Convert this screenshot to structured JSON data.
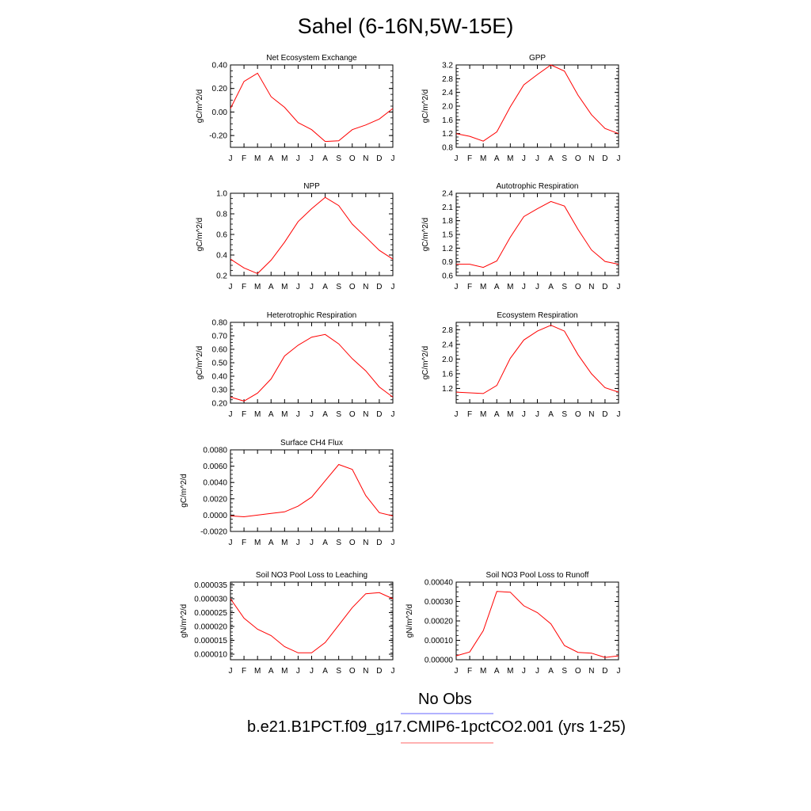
{
  "title": "Sahel (6-16N,5W-15E)",
  "legend": {
    "items": [
      {
        "label": "No Obs",
        "color": "#6666ff"
      },
      {
        "label": "b.e21.B1PCT.f09_g17.CMIP6-1pctCO2.001 (yrs 1-25)",
        "color": "#ff6666"
      }
    ]
  },
  "colors": {
    "series": "#ff0000"
  },
  "chart_data": [
    {
      "type": "line",
      "title": "Net Ecosystem Exchange",
      "ylabel": "gC/m^2/d",
      "categories": [
        "J",
        "F",
        "M",
        "A",
        "M",
        "J",
        "J",
        "A",
        "S",
        "O",
        "N",
        "D",
        "J"
      ],
      "ylim": [
        -0.3,
        0.4
      ],
      "yticks": [
        -0.2,
        0.0,
        0.2,
        0.4
      ],
      "ytick_labels": [
        "-0.20",
        "0.00",
        "0.20",
        "0.40"
      ],
      "series": [
        {
          "values": [
            0.03,
            0.26,
            0.33,
            0.13,
            0.04,
            -0.09,
            -0.15,
            -0.25,
            -0.245,
            -0.15,
            -0.11,
            -0.06,
            0.03
          ]
        }
      ]
    },
    {
      "type": "line",
      "title": "GPP",
      "ylabel": "gC/m^2/d",
      "categories": [
        "J",
        "F",
        "M",
        "A",
        "M",
        "J",
        "J",
        "A",
        "S",
        "O",
        "N",
        "D",
        "J"
      ],
      "ylim": [
        0.8,
        3.2
      ],
      "yticks": [
        0.8,
        1.2,
        1.6,
        2.0,
        2.4,
        2.8,
        3.2
      ],
      "ytick_labels": [
        "0.8",
        "1.2",
        "1.6",
        "2.0",
        "2.4",
        "2.8",
        "3.2"
      ],
      "series": [
        {
          "values": [
            1.2,
            1.12,
            0.98,
            1.25,
            1.98,
            2.62,
            2.92,
            3.2,
            3.02,
            2.32,
            1.75,
            1.35,
            1.2
          ]
        }
      ]
    },
    {
      "type": "line",
      "title": "NPP",
      "ylabel": "gC/m^2/d",
      "categories": [
        "J",
        "F",
        "M",
        "A",
        "M",
        "J",
        "J",
        "A",
        "S",
        "O",
        "N",
        "D",
        "J"
      ],
      "ylim": [
        0.2,
        1.0
      ],
      "yticks": [
        0.2,
        0.4,
        0.6,
        0.8,
        1.0
      ],
      "ytick_labels": [
        "0.2",
        "0.4",
        "0.6",
        "0.8",
        "1.0"
      ],
      "series": [
        {
          "values": [
            0.36,
            0.275,
            0.22,
            0.35,
            0.525,
            0.725,
            0.85,
            0.96,
            0.88,
            0.7,
            0.575,
            0.445,
            0.36
          ]
        }
      ]
    },
    {
      "type": "line",
      "title": "Autotrophic Respiration",
      "ylabel": "gC/m^2/d",
      "categories": [
        "J",
        "F",
        "M",
        "A",
        "M",
        "J",
        "J",
        "A",
        "S",
        "O",
        "N",
        "D",
        "J"
      ],
      "ylim": [
        0.6,
        2.4
      ],
      "yticks": [
        0.6,
        0.9,
        1.2,
        1.5,
        1.8,
        2.1,
        2.4
      ],
      "ytick_labels": [
        "0.6",
        "0.9",
        "1.2",
        "1.5",
        "1.8",
        "2.1",
        "2.4"
      ],
      "series": [
        {
          "values": [
            0.85,
            0.85,
            0.78,
            0.92,
            1.44,
            1.89,
            2.06,
            2.22,
            2.12,
            1.61,
            1.16,
            0.91,
            0.85
          ]
        }
      ]
    },
    {
      "type": "line",
      "title": "Heterotrophic Respiration",
      "ylabel": "gC/m^2/d",
      "categories": [
        "J",
        "F",
        "M",
        "A",
        "M",
        "J",
        "J",
        "A",
        "S",
        "O",
        "N",
        "D",
        "J"
      ],
      "ylim": [
        0.2,
        0.8
      ],
      "yticks": [
        0.2,
        0.3,
        0.4,
        0.5,
        0.6,
        0.7,
        0.8
      ],
      "ytick_labels": [
        "0.20",
        "0.30",
        "0.40",
        "0.50",
        "0.60",
        "0.70",
        "0.80"
      ],
      "series": [
        {
          "values": [
            0.245,
            0.215,
            0.275,
            0.38,
            0.55,
            0.63,
            0.69,
            0.71,
            0.64,
            0.53,
            0.44,
            0.32,
            0.245
          ]
        }
      ]
    },
    {
      "type": "line",
      "title": "Ecosystem Respiration",
      "ylabel": "gC/m^2/d",
      "categories": [
        "J",
        "F",
        "M",
        "A",
        "M",
        "J",
        "J",
        "A",
        "S",
        "O",
        "N",
        "D",
        "J"
      ],
      "ylim": [
        0.8,
        3.0
      ],
      "yticks": [
        1.2,
        1.6,
        2.0,
        2.4,
        2.8
      ],
      "ytick_labels": [
        "1.2",
        "1.6",
        "2.0",
        "2.4",
        "2.8"
      ],
      "series": [
        {
          "values": [
            1.1,
            1.08,
            1.06,
            1.28,
            2.02,
            2.52,
            2.76,
            2.92,
            2.76,
            2.12,
            1.6,
            1.22,
            1.1
          ]
        }
      ]
    },
    {
      "type": "line",
      "title": "Surface CH4 Flux",
      "ylabel": "gC/m^2/d",
      "categories": [
        "J",
        "F",
        "M",
        "A",
        "M",
        "J",
        "J",
        "A",
        "S",
        "O",
        "N",
        "D",
        "J"
      ],
      "ylim": [
        -0.002,
        0.008
      ],
      "yticks": [
        -0.002,
        0.0,
        0.002,
        0.004,
        0.006,
        0.008
      ],
      "ytick_labels": [
        "-0.0020",
        "0.0000",
        "0.0020",
        "0.0040",
        "0.0060",
        "0.0080"
      ],
      "series": [
        {
          "values": [
            -0.0001,
            -0.0002,
            0.0,
            0.0002,
            0.0004,
            0.0011,
            0.0022,
            0.0042,
            0.0062,
            0.0056,
            0.0024,
            0.0003,
            -0.0001
          ]
        }
      ]
    },
    {
      "type": "line",
      "title": "Soil NO3 Pool Loss to Leaching",
      "ylabel": "gN/m^2/d",
      "categories": [
        "J",
        "F",
        "M",
        "A",
        "M",
        "J",
        "J",
        "A",
        "S",
        "O",
        "N",
        "D",
        "J"
      ],
      "ylim": [
        8e-06,
        3.6e-05
      ],
      "yticks": [
        1e-05,
        1.5e-05,
        2e-05,
        2.5e-05,
        3e-05,
        3.5e-05
      ],
      "ytick_labels": [
        "0.000010",
        "0.000015",
        "0.000020",
        "0.000025",
        "0.000030",
        "0.000035"
      ],
      "series": [
        {
          "values": [
            3e-05,
            2.3e-05,
            1.9e-05,
            1.67e-05,
            1.27e-05,
            1.05e-05,
            1.05e-05,
            1.42e-05,
            2.05e-05,
            2.68e-05,
            3.18e-05,
            3.22e-05,
            3e-05
          ]
        }
      ]
    },
    {
      "type": "line",
      "title": "Soil NO3 Pool Loss to Runoff",
      "ylabel": "gN/m^2/d",
      "categories": [
        "J",
        "F",
        "M",
        "A",
        "M",
        "J",
        "J",
        "A",
        "S",
        "O",
        "N",
        "D",
        "J"
      ],
      "ylim": [
        0.0,
        0.0004
      ],
      "yticks": [
        0.0,
        0.0001,
        0.0002,
        0.0003,
        0.0004
      ],
      "ytick_labels": [
        "0.00000",
        "0.00010",
        "0.00020",
        "0.00030",
        "0.00040"
      ],
      "series": [
        {
          "values": [
            2e-05,
            4e-05,
            0.00015,
            0.000352,
            0.000348,
            0.000278,
            0.000243,
            0.000185,
            7.3e-05,
            3.8e-05,
            3.4e-05,
            1.2e-05,
            2e-05
          ]
        }
      ]
    }
  ]
}
